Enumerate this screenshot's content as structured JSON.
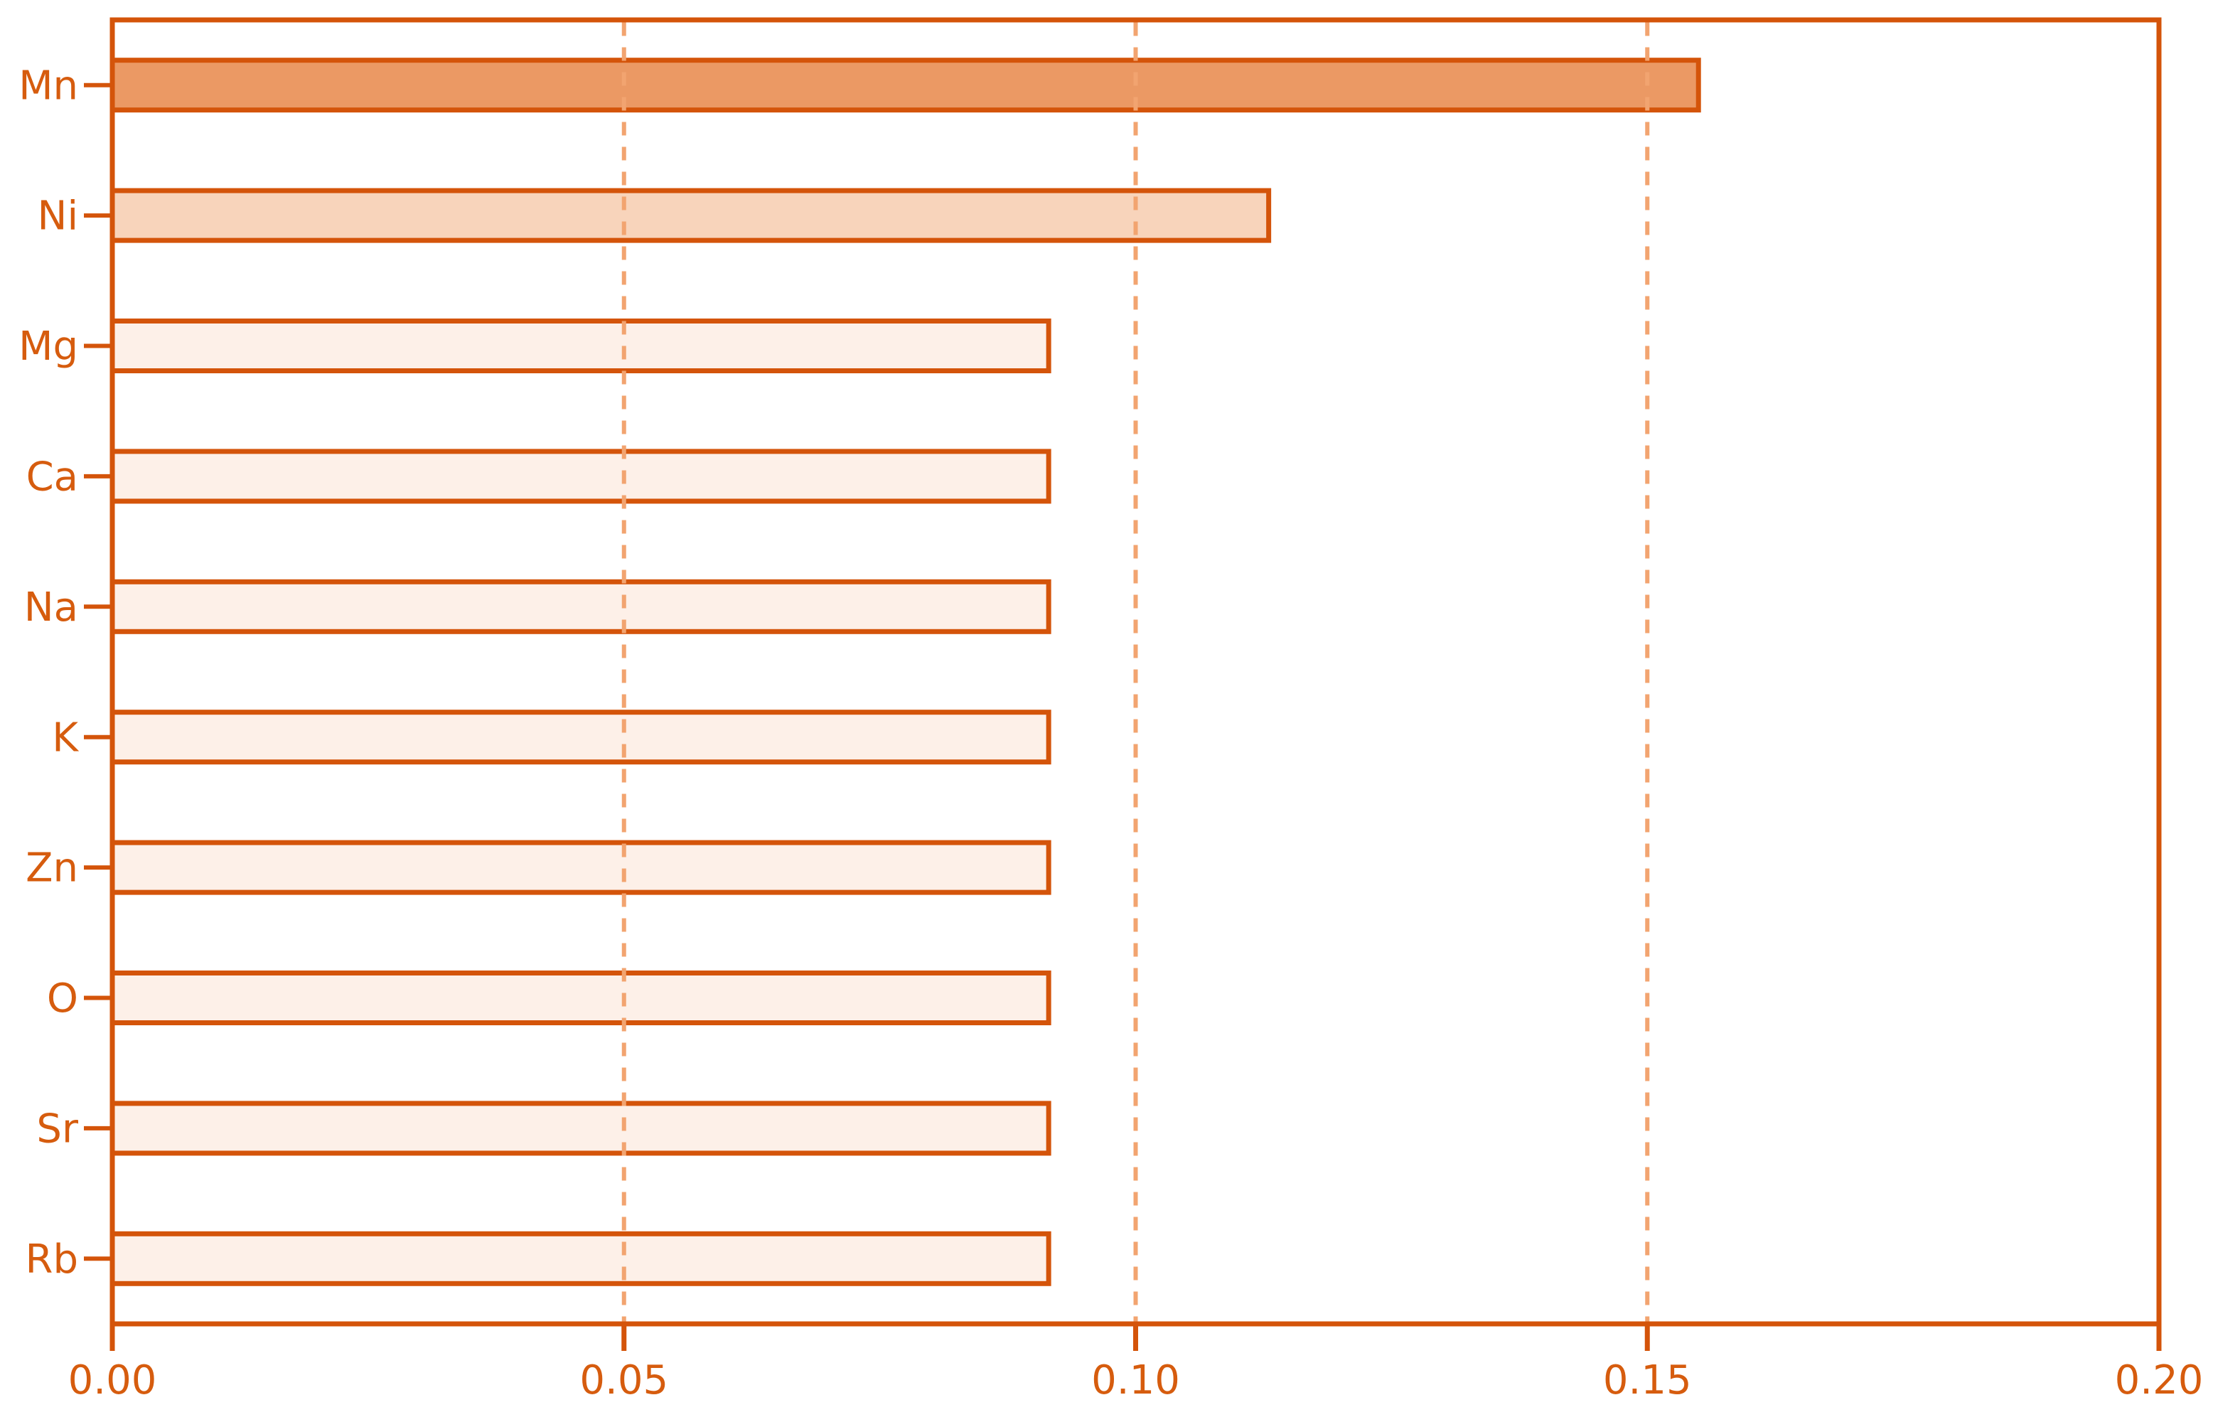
{
  "chart_data": {
    "type": "bar",
    "orientation": "horizontal",
    "title": "",
    "xlabel": "",
    "ylabel": "",
    "categories": [
      "Mn",
      "Ni",
      "Mg",
      "Ca",
      "Na",
      "K",
      "Zn",
      "O",
      "Sr",
      "Rb"
    ],
    "values": [
      0.155,
      0.113,
      0.0915,
      0.0915,
      0.0915,
      0.0915,
      0.0915,
      0.0915,
      0.0915,
      0.0915
    ],
    "bar_colors": [
      "#eb9964",
      "#f8d4bb",
      "#fdf0e8",
      "#fdf0e8",
      "#fdf0e8",
      "#fdf0e8",
      "#fdf0e8",
      "#fdf0e8",
      "#fdf0e8",
      "#fdf0e8"
    ],
    "xlim": [
      0.0,
      0.2
    ],
    "xticks": [
      0.0,
      0.05,
      0.1,
      0.15,
      0.2
    ],
    "xtick_labels": [
      "0.00",
      "0.05",
      "0.10",
      "0.15",
      "0.20"
    ],
    "grid": {
      "show": true,
      "axis": "x",
      "style": "dashed",
      "at": [
        0.05,
        0.1,
        0.15
      ]
    },
    "legend": "none",
    "colors": {
      "axis_line": "#d4540a",
      "bar_edge": "#d4540a",
      "tick_text": "#d65c0e",
      "grid_line": "#f2a470"
    }
  }
}
